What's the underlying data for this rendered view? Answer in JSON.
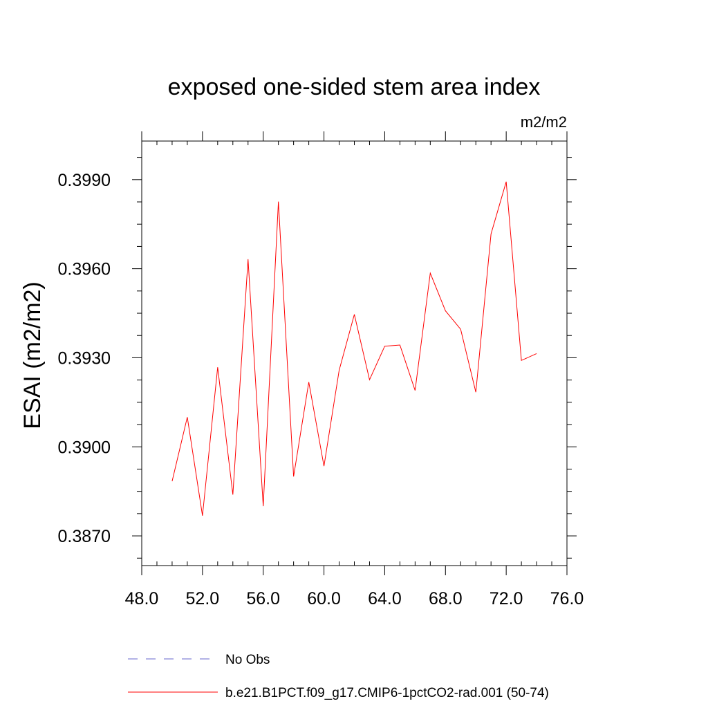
{
  "chart_data": {
    "type": "line",
    "title": "exposed one-sided stem area index",
    "units_label": "m2/m2",
    "xlabel": "",
    "ylabel": "ESAI  (m2/m2)",
    "xlim": [
      48.0,
      76.0
    ],
    "ylim": [
      0.386,
      0.4003
    ],
    "x_ticks": [
      48.0,
      52.0,
      56.0,
      60.0,
      64.0,
      68.0,
      72.0,
      76.0
    ],
    "x_tick_labels": [
      "48.0",
      "52.0",
      "56.0",
      "60.0",
      "64.0",
      "68.0",
      "72.0",
      "76.0"
    ],
    "y_ticks": [
      0.387,
      0.39,
      0.393,
      0.396,
      0.399
    ],
    "y_tick_labels": [
      "0.3870",
      "0.3900",
      "0.3930",
      "0.3960",
      "0.3990"
    ],
    "grid": false,
    "legend_position": "bottom",
    "series": [
      {
        "name": "b.e21.B1PCT.f09_g17.CMIP6-1pctCO2-rad.001 (50-74)",
        "color": "#ff0000",
        "style": "solid",
        "x": [
          50,
          51,
          52,
          53,
          54,
          55,
          56,
          57,
          58,
          59,
          60,
          61,
          62,
          63,
          64,
          65,
          66,
          67,
          68,
          69,
          70,
          71,
          72,
          73,
          74
        ],
        "y": [
          0.38884,
          0.391,
          0.38768,
          0.39268,
          0.38839,
          0.39632,
          0.388,
          0.39826,
          0.389,
          0.39218,
          0.38935,
          0.39258,
          0.39446,
          0.39226,
          0.39339,
          0.39343,
          0.3919,
          0.39585,
          0.39458,
          0.39396,
          0.39184,
          0.39717,
          0.39893,
          0.39291,
          0.39314
        ]
      }
    ],
    "legend": [
      {
        "label": "No Obs",
        "color": "#6666cc",
        "style": "dashed"
      },
      {
        "label": "b.e21.B1PCT.f09_g17.CMIP6-1pctCO2-rad.001 (50-74)",
        "color": "#ff0000",
        "style": "solid"
      }
    ]
  }
}
